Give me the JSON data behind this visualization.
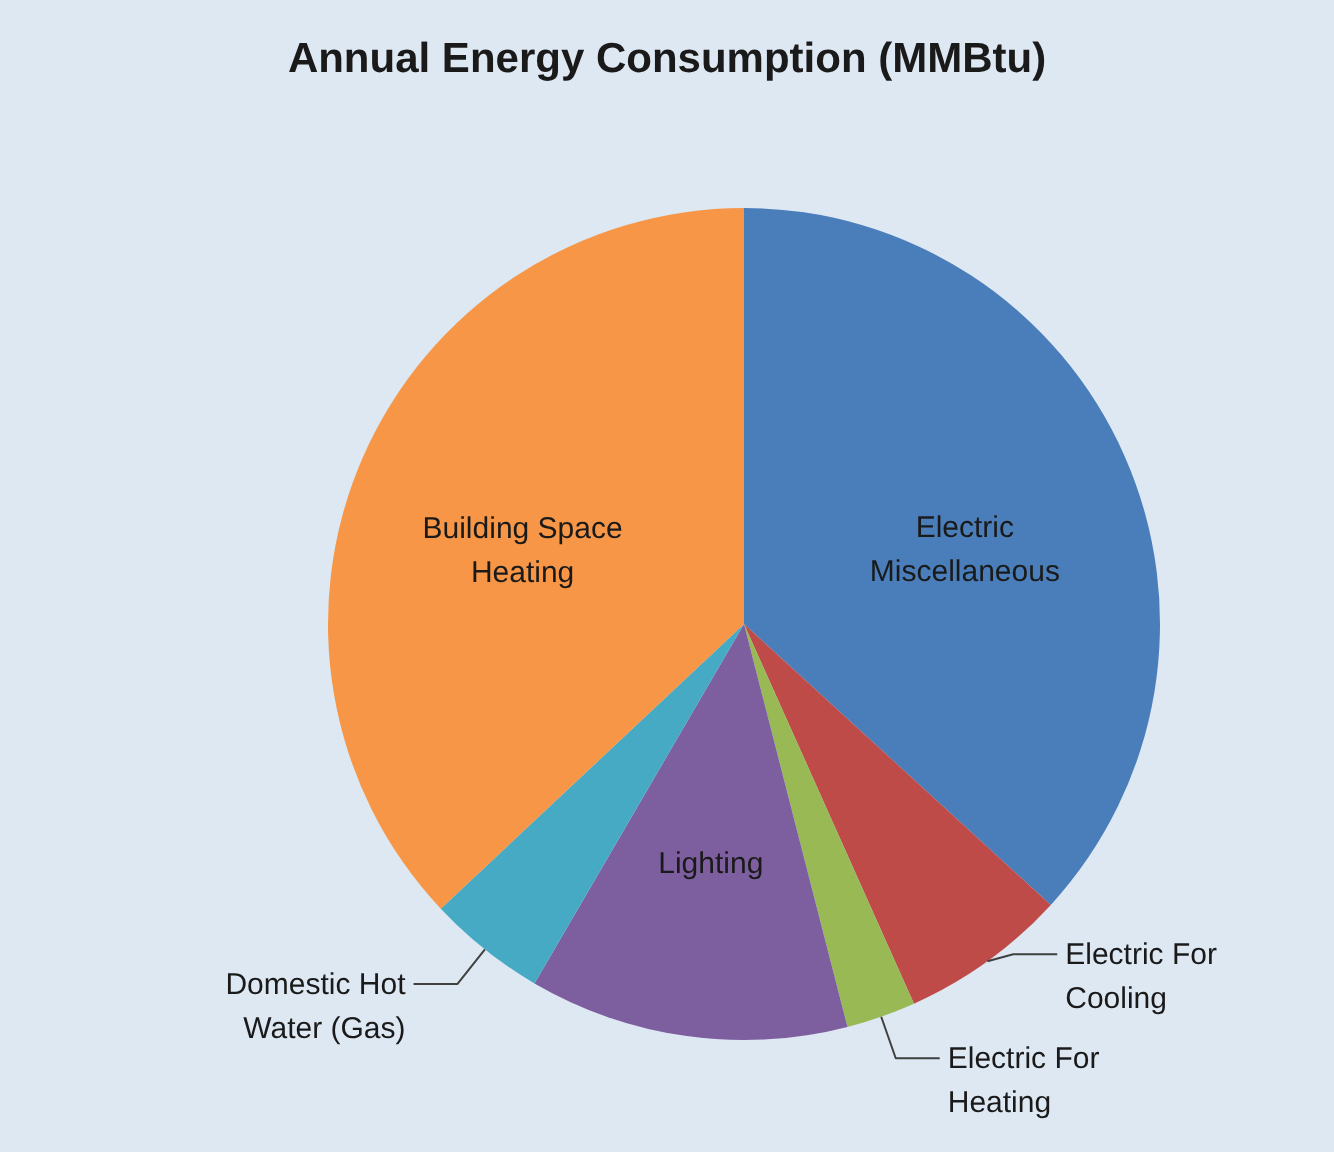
{
  "chart_data": {
    "type": "pie",
    "title": "Annual Energy Consumption (MMBtu)",
    "categories": [
      "Electric Miscellaneous",
      "Electric For Cooling",
      "Electric For Heating",
      "Lighting",
      "Domestic Hot Water (Gas)",
      "Building Space Heating"
    ],
    "values": [
      36.8,
      6.5,
      2.7,
      12.4,
      4.6,
      37.0
    ],
    "colors": [
      "#4a7ebb",
      "#be4b48",
      "#98b954",
      "#7d5fa0",
      "#46aac5",
      "#f79646"
    ]
  }
}
